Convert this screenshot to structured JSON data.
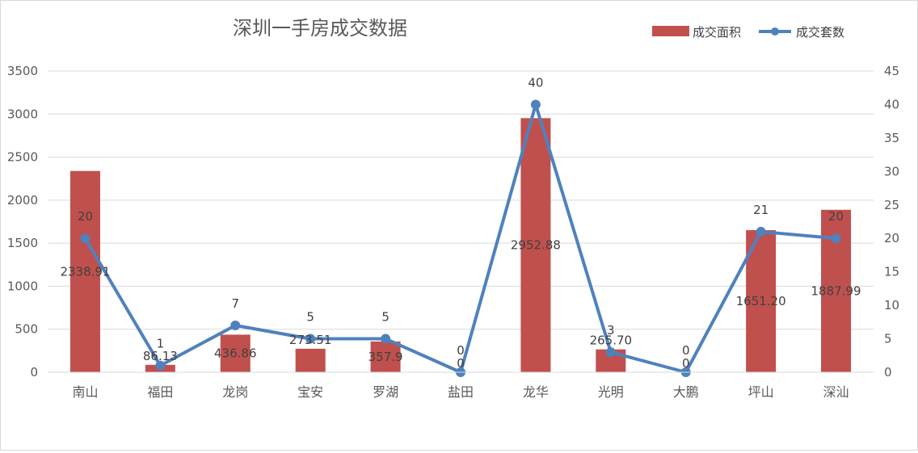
{
  "chart_data": {
    "type": "bar+line",
    "title": "深圳一手房成交数据",
    "categories": [
      "南山",
      "福田",
      "龙岗",
      "宝安",
      "罗湖",
      "盐田",
      "龙华",
      "光明",
      "大鹏",
      "坪山",
      "深汕"
    ],
    "series": [
      {
        "name": "成交面积",
        "type": "bar",
        "axis": "left",
        "color": "#c0504d",
        "values": [
          2338.91,
          86.13,
          436.86,
          273.51,
          357.9,
          0,
          2952.88,
          265.7,
          0,
          1651.2,
          1887.99
        ],
        "labels": [
          "2338.91",
          "86.13",
          "436.86",
          "273.51",
          "357.9",
          "0",
          "2952.88",
          "265.70",
          "0",
          "1651.20",
          "1887.99"
        ]
      },
      {
        "name": "成交套数",
        "type": "line",
        "axis": "right",
        "color": "#4f81bd",
        "values": [
          20,
          1,
          7,
          5,
          5,
          0,
          40,
          3,
          0,
          21,
          20
        ],
        "labels": [
          "20",
          "1",
          "7",
          "5",
          "5",
          "0",
          "40",
          "3",
          "0",
          "21",
          "20"
        ]
      }
    ],
    "y_left": {
      "min": 0,
      "max": 3500,
      "step": 500,
      "ticks": [
        "0",
        "500",
        "1000",
        "1500",
        "2000",
        "2500",
        "3000",
        "3500"
      ]
    },
    "y_right": {
      "min": 0,
      "max": 45,
      "step": 5,
      "ticks": [
        "0",
        "5",
        "10",
        "15",
        "20",
        "25",
        "30",
        "35",
        "40",
        "45"
      ]
    },
    "grid": true,
    "legend_position": "top-right"
  }
}
